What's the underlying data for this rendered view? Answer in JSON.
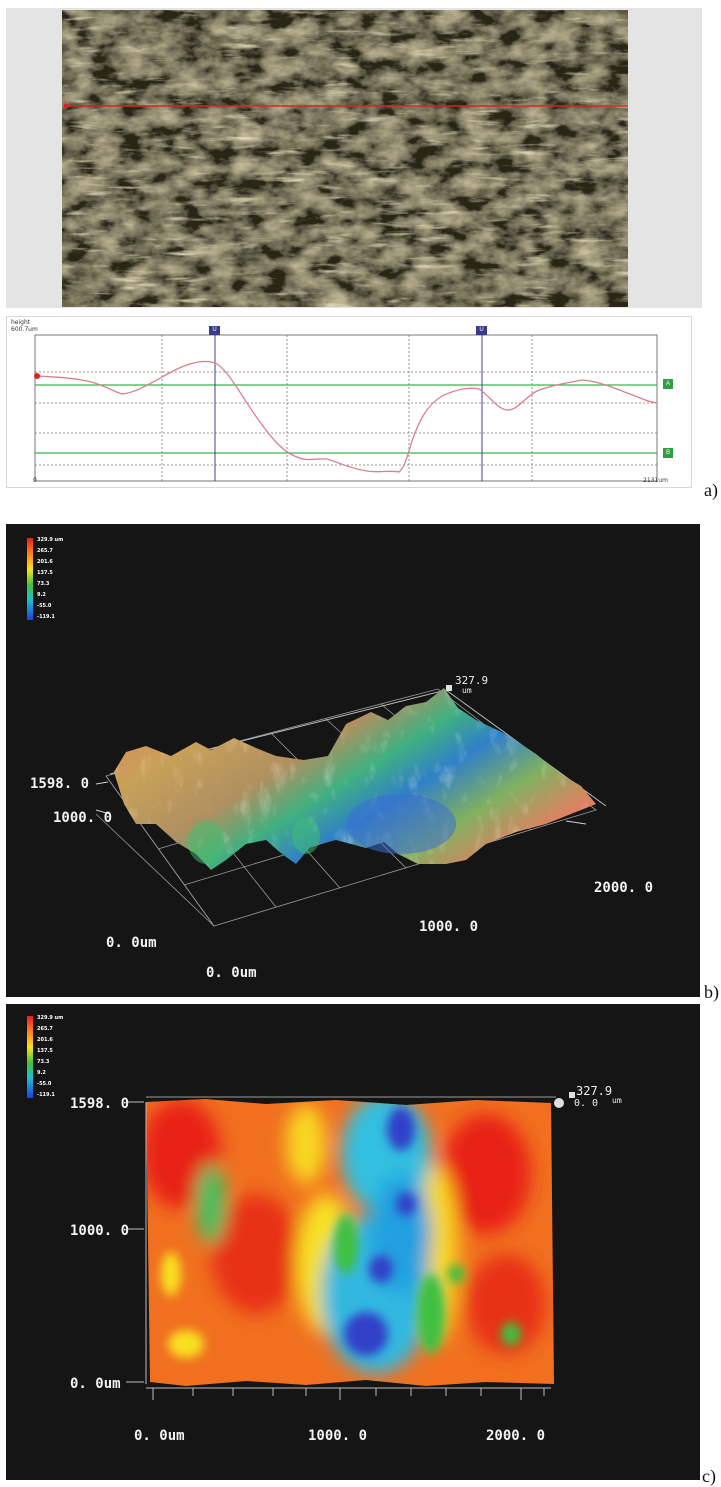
{
  "panel_a": {
    "label": "a)",
    "profile": {
      "height_label": "height",
      "height_value": "600.7um",
      "x_start": "0",
      "x_end": "2131um",
      "cursor_left": "U",
      "cursor_right": "U",
      "ref_upper": "A",
      "ref_lower": "B"
    }
  },
  "panel_b": {
    "label": "b)",
    "colorbar": [
      "329.9 um",
      "265.7",
      "201.6",
      "137.5",
      "73.3",
      "9.2",
      "-55.0",
      "-119.1"
    ],
    "max_value": "327.9",
    "max_unit": "um",
    "y_top": "1598. 0",
    "y_mid": "1000. 0",
    "origin_y": "0. 0um",
    "origin_x": "0. 0um",
    "x_mid": "1000. 0",
    "x_end": "2000. 0"
  },
  "panel_c": {
    "label": "c)",
    "colorbar": [
      "329.9 um",
      "265.7",
      "201.6",
      "137.5",
      "73.3",
      "9.2",
      "-55.0",
      "-119.1"
    ],
    "max_value": "327.9",
    "min_value": "0. 0",
    "unit": "um",
    "y_top": "1598. 0",
    "y_mid": "1000. 0",
    "y_bottom": "0. 0um",
    "x_start": "0. 0um",
    "x_mid": "1000. 0",
    "x_end": "2000. 0"
  },
  "colors": {
    "profile_line": "#d98090",
    "ref_line": "#3bb54a",
    "cursor": "#4040a0",
    "scan_line": "#e02020"
  }
}
